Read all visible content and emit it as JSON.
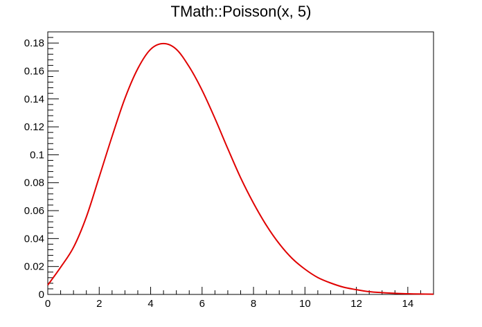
{
  "chart_data": {
    "type": "line",
    "title": "TMath::Poisson(x, 5)",
    "xlabel": "",
    "ylabel": "",
    "xlim": [
      0,
      15
    ],
    "ylim": [
      0,
      0.188
    ],
    "x_ticks": [
      "0",
      "2",
      "4",
      "6",
      "8",
      "10",
      "12",
      "14"
    ],
    "y_ticks": [
      "0",
      "0.02",
      "0.04",
      "0.06",
      "0.08",
      "0.1",
      "0.12",
      "0.14",
      "0.16",
      "0.18"
    ],
    "grid": false,
    "legend": "none",
    "series": [
      {
        "color": "#e00000",
        "x": [
          0,
          0.5,
          1,
          1.5,
          2,
          2.5,
          3,
          3.5,
          4,
          4.5,
          5,
          5.5,
          6,
          6.5,
          7,
          7.5,
          8,
          8.5,
          9,
          9.5,
          10,
          10.5,
          11,
          11.5,
          12,
          12.5,
          13,
          13.5,
          14,
          14.5,
          15
        ],
        "y": [
          0.0067,
          0.0195,
          0.0337,
          0.0555,
          0.0842,
          0.1131,
          0.1404,
          0.1617,
          0.1755,
          0.1796,
          0.1755,
          0.163,
          0.1462,
          0.126,
          0.1044,
          0.0835,
          0.0653,
          0.0495,
          0.0363,
          0.0258,
          0.0181,
          0.0121,
          0.0082,
          0.0052,
          0.0034,
          0.002,
          0.0013,
          0.0008,
          0.0005,
          0.0003,
          0.0002
        ]
      }
    ]
  }
}
